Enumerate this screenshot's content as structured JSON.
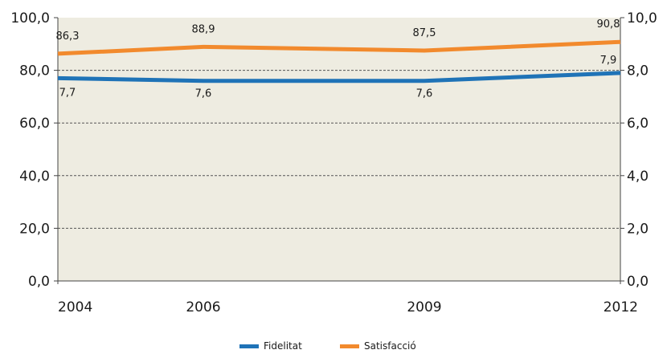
{
  "chart_data": {
    "type": "line",
    "categories": [
      "2004",
      "2006",
      "2009",
      "2012"
    ],
    "y_left": {
      "ticks": [
        "0,0",
        "20,0",
        "40,0",
        "60,0",
        "80,0",
        "100,0"
      ],
      "range": [
        0,
        100
      ]
    },
    "y_right": {
      "ticks": [
        "0,0",
        "2,0",
        "4,0",
        "6,0",
        "8,0",
        "10,0"
      ],
      "range": [
        0,
        10
      ]
    },
    "series": [
      {
        "name": "Satisfacció",
        "axis": "left",
        "color": "#f28a2d",
        "values": [
          86.3,
          88.9,
          87.5,
          90.8
        ],
        "labels": [
          "86,3",
          "88,9",
          "87,5",
          "90,8"
        ]
      },
      {
        "name": "Fidelitat",
        "axis": "right",
        "color": "#1f73b7",
        "values": [
          7.7,
          7.6,
          7.6,
          7.9
        ],
        "labels": [
          "7,7",
          "7,6",
          "7,6",
          "7,9"
        ]
      }
    ],
    "plot_background": "#eeece1",
    "grid": "dashed horizontal",
    "legend_position": "bottom"
  },
  "legend": {
    "items": [
      {
        "label": "Fidelitat",
        "color": "#1f73b7"
      },
      {
        "label": "Satisfacció",
        "color": "#f28a2d"
      }
    ]
  }
}
